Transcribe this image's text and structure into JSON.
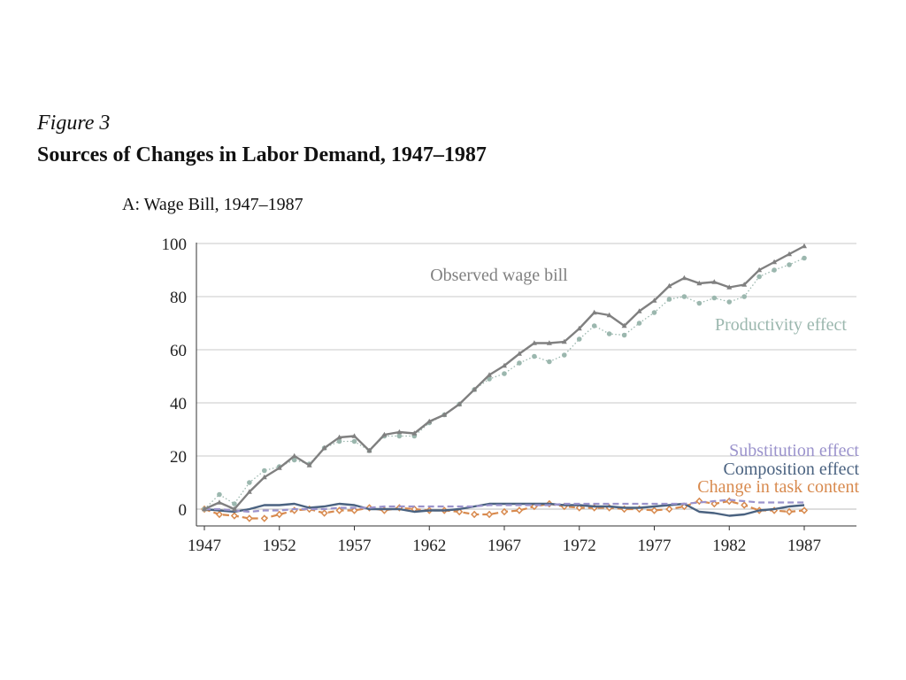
{
  "figure": {
    "label": "Figure 3",
    "title": "Sources of Changes in Labor Demand, 1947–1987"
  },
  "chart_data": {
    "type": "line",
    "title": "A: Wage Bill, 1947–1987",
    "xlabel": "",
    "ylabel": "",
    "xlim": [
      1947,
      1991
    ],
    "ylim": [
      -6,
      100
    ],
    "xticks": [
      1947,
      1952,
      1957,
      1962,
      1967,
      1972,
      1977,
      1982,
      1987
    ],
    "yticks": [
      0,
      20,
      40,
      60,
      80,
      100
    ],
    "grid": "horizontal",
    "x": [
      1947,
      1948,
      1949,
      1950,
      1951,
      1952,
      1953,
      1954,
      1955,
      1956,
      1957,
      1958,
      1959,
      1960,
      1961,
      1962,
      1963,
      1964,
      1965,
      1966,
      1967,
      1968,
      1969,
      1970,
      1971,
      1972,
      1973,
      1974,
      1975,
      1976,
      1977,
      1978,
      1979,
      1980,
      1981,
      1982,
      1983,
      1984,
      1985,
      1986,
      1987
    ],
    "series": [
      {
        "name": "Observed wage bill",
        "color": "#808080",
        "style": "solid",
        "marker": "triangle",
        "values": [
          0,
          2.5,
          0,
          6.5,
          12,
          15.5,
          20,
          16.5,
          23,
          27,
          27.5,
          22,
          28,
          29,
          28.5,
          33,
          35.5,
          39.5,
          45,
          50.5,
          54,
          58.5,
          62.5,
          62.5,
          63,
          68,
          74,
          73,
          69,
          74.5,
          78.5,
          84,
          87,
          85,
          85.5,
          83.5,
          84.5,
          90,
          93,
          96,
          99
        ]
      },
      {
        "name": "Productivity effect",
        "color": "#9bb7ae",
        "style": "dotted",
        "marker": "circle",
        "values": [
          0,
          5.5,
          2,
          10,
          14.5,
          16,
          18.5,
          17,
          23,
          25.5,
          25.5,
          22,
          27.5,
          27.5,
          27.5,
          32.5,
          35.5,
          39.5,
          45,
          49,
          51,
          55,
          57.5,
          55.5,
          58,
          64,
          69,
          66,
          65.5,
          70,
          74,
          79,
          80,
          77.5,
          79.5,
          78,
          80,
          87.5,
          90,
          92,
          94.5
        ]
      },
      {
        "name": "Substitution effect",
        "color": "#9b93cc",
        "style": "dashed",
        "marker": "none",
        "values": [
          0,
          0,
          -0.5,
          -1,
          -0.5,
          -0.5,
          0,
          0,
          0,
          0.5,
          0.5,
          0.5,
          1,
          1,
          1,
          1,
          1,
          1,
          1,
          1.5,
          1.5,
          1.5,
          1.5,
          1.5,
          2,
          2,
          2,
          2,
          2,
          2,
          2,
          2,
          2,
          2.5,
          3,
          3.5,
          3,
          2.5,
          2.5,
          2.5,
          2.5
        ]
      },
      {
        "name": "Composition effect",
        "color": "#4a6280",
        "style": "solid",
        "marker": "none",
        "values": [
          0,
          -0.5,
          -1,
          0,
          1.5,
          1.5,
          2,
          0.5,
          1,
          2,
          1.5,
          0,
          0,
          0,
          -1,
          -0.5,
          -0.5,
          0,
          1,
          2,
          2,
          2,
          2,
          2,
          1.5,
          1.5,
          1,
          1,
          0.5,
          0.5,
          1,
          1.5,
          2,
          -1,
          -1.5,
          -2.5,
          -2,
          -0.5,
          0,
          1,
          1.5
        ]
      },
      {
        "name": "Change in task content",
        "color": "#d88a4e",
        "style": "dashed",
        "marker": "diamond",
        "values": [
          0,
          -2,
          -2.5,
          -3.5,
          -3.5,
          -2,
          -0.5,
          0,
          -1.5,
          -0.5,
          -0.5,
          0.5,
          -0.5,
          0.5,
          0,
          -0.5,
          -0.5,
          -1,
          -2,
          -2,
          -1,
          -0.5,
          1,
          2,
          1,
          0.5,
          0.5,
          0.5,
          0,
          0,
          -0.5,
          0,
          1,
          3,
          2,
          3,
          1.5,
          -0.5,
          -0.5,
          -1,
          -0.5
        ]
      }
    ],
    "annotations": [
      {
        "text": "Observed wage bill",
        "series": 0
      },
      {
        "text": "Productivity effect",
        "series": 1
      },
      {
        "text": "Substitution effect",
        "series": 2
      },
      {
        "text": "Composition effect",
        "series": 3
      },
      {
        "text": "Change in task content",
        "series": 4
      }
    ]
  }
}
